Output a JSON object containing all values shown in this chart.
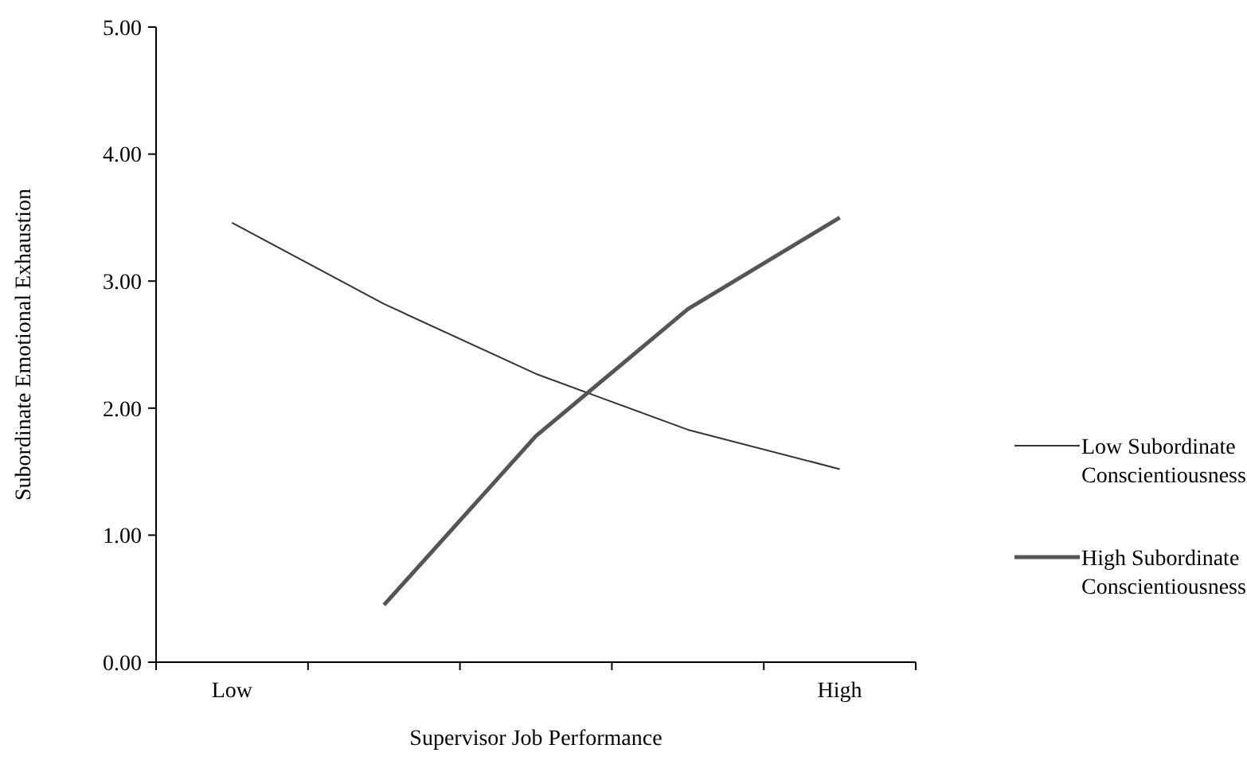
{
  "chart_data": {
    "type": "line",
    "xlabel": "Supervisor Job Performance",
    "ylabel": "Subordinate Emotional Exhaustion",
    "categories": [
      "Low",
      null,
      null,
      null,
      "High"
    ],
    "series": [
      {
        "name": "Low Subordinate Conscientiousness",
        "color": "#333333",
        "values": [
          3.46,
          2.82,
          2.27,
          1.83,
          1.52
        ]
      },
      {
        "name": "High Subordinate Conscientiousness",
        "color": "#555555",
        "values": [
          null,
          0.45,
          1.78,
          2.78,
          3.5
        ]
      }
    ],
    "ylim": [
      0,
      5
    ],
    "yticks": [
      {
        "value": 0,
        "label": "0.00"
      },
      {
        "value": 1,
        "label": "1.00"
      },
      {
        "value": 2,
        "label": "2.00"
      },
      {
        "value": 3,
        "label": "3.00"
      },
      {
        "value": 4,
        "label": "4.00"
      },
      {
        "value": 5,
        "label": "5.00"
      }
    ],
    "grid": false,
    "legend": "right",
    "marker": "none"
  }
}
